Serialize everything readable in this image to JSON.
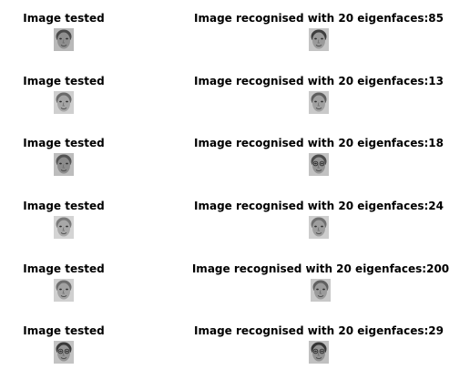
{
  "pairs": [
    {
      "tested_title": "Image tested",
      "recognised_title": "Image recognised with 20 eigenfaces:85",
      "tested_face": {
        "skin": "#8f8f8f",
        "bg": "#b9b9b9",
        "hair": "#4a4a4a",
        "glasses": false
      },
      "recognised_face": {
        "skin": "#9a9a9a",
        "bg": "#c4c4c4",
        "hair": "#3e3e3e",
        "glasses": false
      }
    },
    {
      "tested_title": "Image tested",
      "recognised_title": "Image recognised with 20 eigenfaces:13",
      "tested_face": {
        "skin": "#a5a5a5",
        "bg": "#cfcfcf",
        "hair": "#6a6a6a",
        "glasses": false
      },
      "recognised_face": {
        "skin": "#a0a0a0",
        "bg": "#c9c9c9",
        "hair": "#5e5e5e",
        "glasses": false
      }
    },
    {
      "tested_title": "Image tested",
      "recognised_title": "Image recognised with 20 eigenfaces:18",
      "tested_face": {
        "skin": "#8c8c8c",
        "bg": "#bdbdbd",
        "hair": "#555555",
        "glasses": false
      },
      "recognised_face": {
        "skin": "#939393",
        "bg": "#c2c2c2",
        "hair": "#4c4c4c",
        "glasses": true
      }
    },
    {
      "tested_title": "Image tested",
      "recognised_title": "Image recognised with 20 eigenfaces:24",
      "tested_face": {
        "skin": "#a8a8a8",
        "bg": "#d4d4d4",
        "hair": "#7a7a7a",
        "glasses": false
      },
      "recognised_face": {
        "skin": "#9e9e9e",
        "bg": "#cdcdcd",
        "hair": "#707070",
        "glasses": false
      }
    },
    {
      "tested_title": "Image tested",
      "recognised_title": "Image recognised with 20 eigenfaces:200",
      "tested_face": {
        "skin": "#a2a2a2",
        "bg": "#d0d0d0",
        "hair": "#6e6e6e",
        "glasses": false
      },
      "recognised_face": {
        "skin": "#9b9b9b",
        "bg": "#c8c8c8",
        "hair": "#606060",
        "glasses": false
      }
    },
    {
      "tested_title": "Image tested",
      "recognised_title": "Image recognised with 20 eigenfaces:29",
      "tested_face": {
        "skin": "#969696",
        "bg": "#c3c3c3",
        "hair": "#3a3a3a",
        "glasses": true
      },
      "recognised_face": {
        "skin": "#929292",
        "bg": "#c0c0c0",
        "hair": "#363636",
        "glasses": true
      }
    }
  ]
}
